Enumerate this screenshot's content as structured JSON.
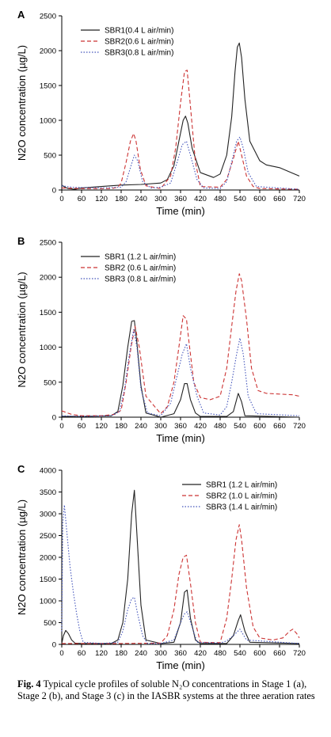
{
  "chart_data": [
    {
      "type": "line",
      "panel_letter": "A",
      "xlabel": "Time (min)",
      "ylabel": "N2O concentration (µg/L)",
      "xlim": [
        0,
        720
      ],
      "ylim": [
        0,
        2500
      ],
      "xticks": [
        0,
        60,
        120,
        180,
        240,
        300,
        360,
        420,
        480,
        540,
        600,
        660,
        720
      ],
      "yticks": [
        0,
        500,
        1000,
        1500,
        2000,
        2500
      ],
      "legend_position": "top-left",
      "series": [
        {
          "name": "SBR1(0.4 L air/min)",
          "color": "#222222",
          "dash": "solid",
          "x": [
            0,
            10,
            20,
            40,
            60,
            120,
            180,
            240,
            300,
            320,
            340,
            355,
            368,
            375,
            382,
            395,
            420,
            460,
            480,
            500,
            515,
            525,
            532,
            538,
            545,
            555,
            570,
            600,
            620,
            660,
            700,
            720
          ],
          "y": [
            70,
            40,
            20,
            10,
            30,
            50,
            70,
            80,
            100,
            150,
            350,
            700,
            1000,
            1060,
            960,
            600,
            250,
            180,
            230,
            500,
            1050,
            1700,
            2050,
            2110,
            1900,
            1300,
            700,
            420,
            360,
            320,
            240,
            200
          ]
        },
        {
          "name": "SBR2(0.6 L air/min)",
          "color": "#cc3333",
          "dash": "dashed",
          "x": [
            0,
            60,
            150,
            170,
            180,
            195,
            208,
            218,
            225,
            238,
            255,
            300,
            330,
            345,
            360,
            372,
            380,
            390,
            405,
            420,
            480,
            500,
            520,
            535,
            545,
            560,
            580,
            600,
            720
          ],
          "y": [
            30,
            20,
            20,
            40,
            100,
            400,
            700,
            810,
            700,
            300,
            60,
            20,
            200,
            600,
            1250,
            1700,
            1720,
            1200,
            400,
            50,
            40,
            150,
            450,
            700,
            500,
            200,
            50,
            20,
            10
          ]
        },
        {
          "name": "SBR3(0.8 L air/min)",
          "color": "#4455bb",
          "dash": "dotted",
          "x": [
            0,
            30,
            120,
            180,
            195,
            210,
            220,
            230,
            245,
            270,
            300,
            330,
            350,
            365,
            378,
            390,
            410,
            430,
            480,
            500,
            515,
            530,
            540,
            550,
            565,
            590,
            720
          ],
          "y": [
            60,
            40,
            30,
            40,
            120,
            350,
            500,
            420,
            120,
            30,
            40,
            100,
            400,
            650,
            700,
            500,
            150,
            30,
            20,
            120,
            400,
            700,
            760,
            600,
            250,
            50,
            10
          ]
        }
      ]
    },
    {
      "type": "line",
      "panel_letter": "B",
      "xlabel": "Time (min)",
      "ylabel": "N2O concentration (µg/L)",
      "xlim": [
        0,
        720
      ],
      "ylim": [
        0,
        2500
      ],
      "xticks": [
        0,
        60,
        120,
        180,
        240,
        300,
        360,
        420,
        480,
        540,
        600,
        660,
        720
      ],
      "yticks": [
        0,
        500,
        1000,
        1500,
        2000,
        2500
      ],
      "legend_position": "top-left",
      "series": [
        {
          "name": "SBR1 (1.2 L air/min)",
          "color": "#222222",
          "dash": "solid",
          "x": [
            0,
            60,
            150,
            170,
            185,
            200,
            212,
            220,
            228,
            240,
            255,
            300,
            340,
            360,
            372,
            380,
            390,
            405,
            420,
            500,
            520,
            535,
            545,
            555,
            720
          ],
          "y": [
            10,
            10,
            20,
            80,
            450,
            1000,
            1370,
            1380,
            1050,
            450,
            60,
            0,
            50,
            250,
            480,
            480,
            250,
            60,
            10,
            10,
            80,
            340,
            220,
            20,
            0
          ]
        },
        {
          "name": "SBR2 (0.6 L air/min)",
          "color": "#cc3333",
          "dash": "dashed",
          "x": [
            0,
            30,
            60,
            120,
            160,
            180,
            195,
            210,
            222,
            235,
            255,
            300,
            320,
            340,
            355,
            368,
            378,
            385,
            400,
            420,
            450,
            480,
            500,
            515,
            528,
            538,
            545,
            560,
            575,
            595,
            620,
            660,
            700,
            720
          ],
          "y": [
            90,
            40,
            20,
            20,
            40,
            100,
            500,
            1000,
            1300,
            1000,
            300,
            50,
            150,
            500,
            1000,
            1450,
            1400,
            1100,
            500,
            280,
            250,
            300,
            700,
            1300,
            1800,
            2050,
            1950,
            1400,
            700,
            380,
            340,
            330,
            320,
            300
          ]
        },
        {
          "name": "SBR3 (0.8 L air/min)",
          "color": "#4455bb",
          "dash": "dotted",
          "x": [
            0,
            60,
            150,
            175,
            190,
            205,
            218,
            228,
            240,
            260,
            300,
            330,
            350,
            365,
            378,
            390,
            410,
            430,
            480,
            500,
            515,
            530,
            540,
            550,
            565,
            590,
            720
          ],
          "y": [
            20,
            10,
            20,
            80,
            400,
            900,
            1250,
            1000,
            400,
            60,
            20,
            200,
            600,
            900,
            1050,
            700,
            300,
            60,
            30,
            150,
            500,
            900,
            1130,
            900,
            300,
            50,
            20
          ]
        }
      ]
    },
    {
      "type": "line",
      "panel_letter": "C",
      "xlabel": "Time (min)",
      "ylabel": "N2O concentration (µg/L)",
      "xlim": [
        0,
        720
      ],
      "ylim": [
        0,
        4000
      ],
      "xticks": [
        0,
        60,
        120,
        180,
        240,
        300,
        360,
        420,
        480,
        540,
        600,
        660,
        720
      ],
      "yticks": [
        0,
        500,
        1000,
        1500,
        2000,
        2500,
        3000,
        3500,
        4000
      ],
      "legend_position": "top-right",
      "series": [
        {
          "name": "SBR1 (1.2 L air/min)",
          "color": "#222222",
          "dash": "solid",
          "x": [
            0,
            5,
            12,
            20,
            30,
            40,
            60,
            150,
            170,
            185,
            200,
            212,
            220,
            228,
            240,
            255,
            300,
            340,
            360,
            372,
            380,
            390,
            405,
            420,
            500,
            520,
            535,
            542,
            555,
            570,
            720
          ],
          "y": [
            20,
            200,
            320,
            250,
            100,
            30,
            20,
            20,
            100,
            500,
            1500,
            3000,
            3540,
            2500,
            900,
            100,
            20,
            50,
            500,
            1200,
            1250,
            600,
            100,
            20,
            20,
            200,
            550,
            680,
            300,
            50,
            20
          ]
        },
        {
          "name": "SBR2 (1.0 L air/min)",
          "color": "#cc3333",
          "dash": "dashed",
          "x": [
            0,
            60,
            180,
            300,
            320,
            340,
            355,
            368,
            378,
            390,
            405,
            420,
            480,
            500,
            515,
            528,
            538,
            545,
            560,
            580,
            600,
            640,
            670,
            690,
            700,
            712,
            720
          ],
          "y": [
            20,
            20,
            20,
            30,
            200,
            800,
            1600,
            2000,
            2050,
            1400,
            500,
            50,
            40,
            600,
            1500,
            2400,
            2750,
            2400,
            1300,
            400,
            150,
            100,
            150,
            300,
            350,
            250,
            150
          ]
        },
        {
          "name": "SBR3 (1.4 L air/min)",
          "color": "#4455bb",
          "dash": "dotted",
          "x": [
            0,
            3,
            8,
            15,
            25,
            35,
            45,
            55,
            65,
            120,
            170,
            185,
            200,
            212,
            220,
            230,
            245,
            260,
            300,
            340,
            360,
            372,
            380,
            395,
            410,
            480,
            500,
            520,
            540,
            560,
            720
          ],
          "y": [
            300,
            2800,
            3200,
            2600,
            1800,
            1200,
            700,
            300,
            50,
            20,
            50,
            300,
            800,
            1050,
            1080,
            700,
            200,
            20,
            20,
            100,
            500,
            700,
            750,
            400,
            50,
            30,
            80,
            200,
            350,
            100,
            20
          ]
        }
      ]
    }
  ],
  "caption": {
    "label": "Fig. 4",
    "text": "Typical cycle profiles of soluble N₂O concentrations in Stage 1 (a), Stage 2 (b), and Stage 3 (c) in the IASBR systems at the three aeration rates"
  }
}
